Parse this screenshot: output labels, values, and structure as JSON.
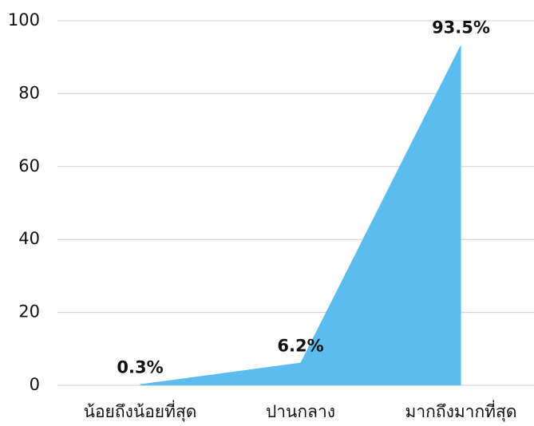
{
  "chart_data": {
    "type": "area",
    "categories": [
      "น้อยถึงน้อยที่สุด",
      "ปานกลาง",
      "มากถึงมากที่สุด"
    ],
    "values": [
      0.3,
      6.2,
      93.5
    ],
    "value_labels": [
      "0.3%",
      "6.2%",
      "93.5%"
    ],
    "color": "#5bbcf0",
    "ylim": [
      0,
      100
    ],
    "yticks": [
      0,
      20,
      40,
      60,
      80,
      100
    ],
    "grid": true
  }
}
